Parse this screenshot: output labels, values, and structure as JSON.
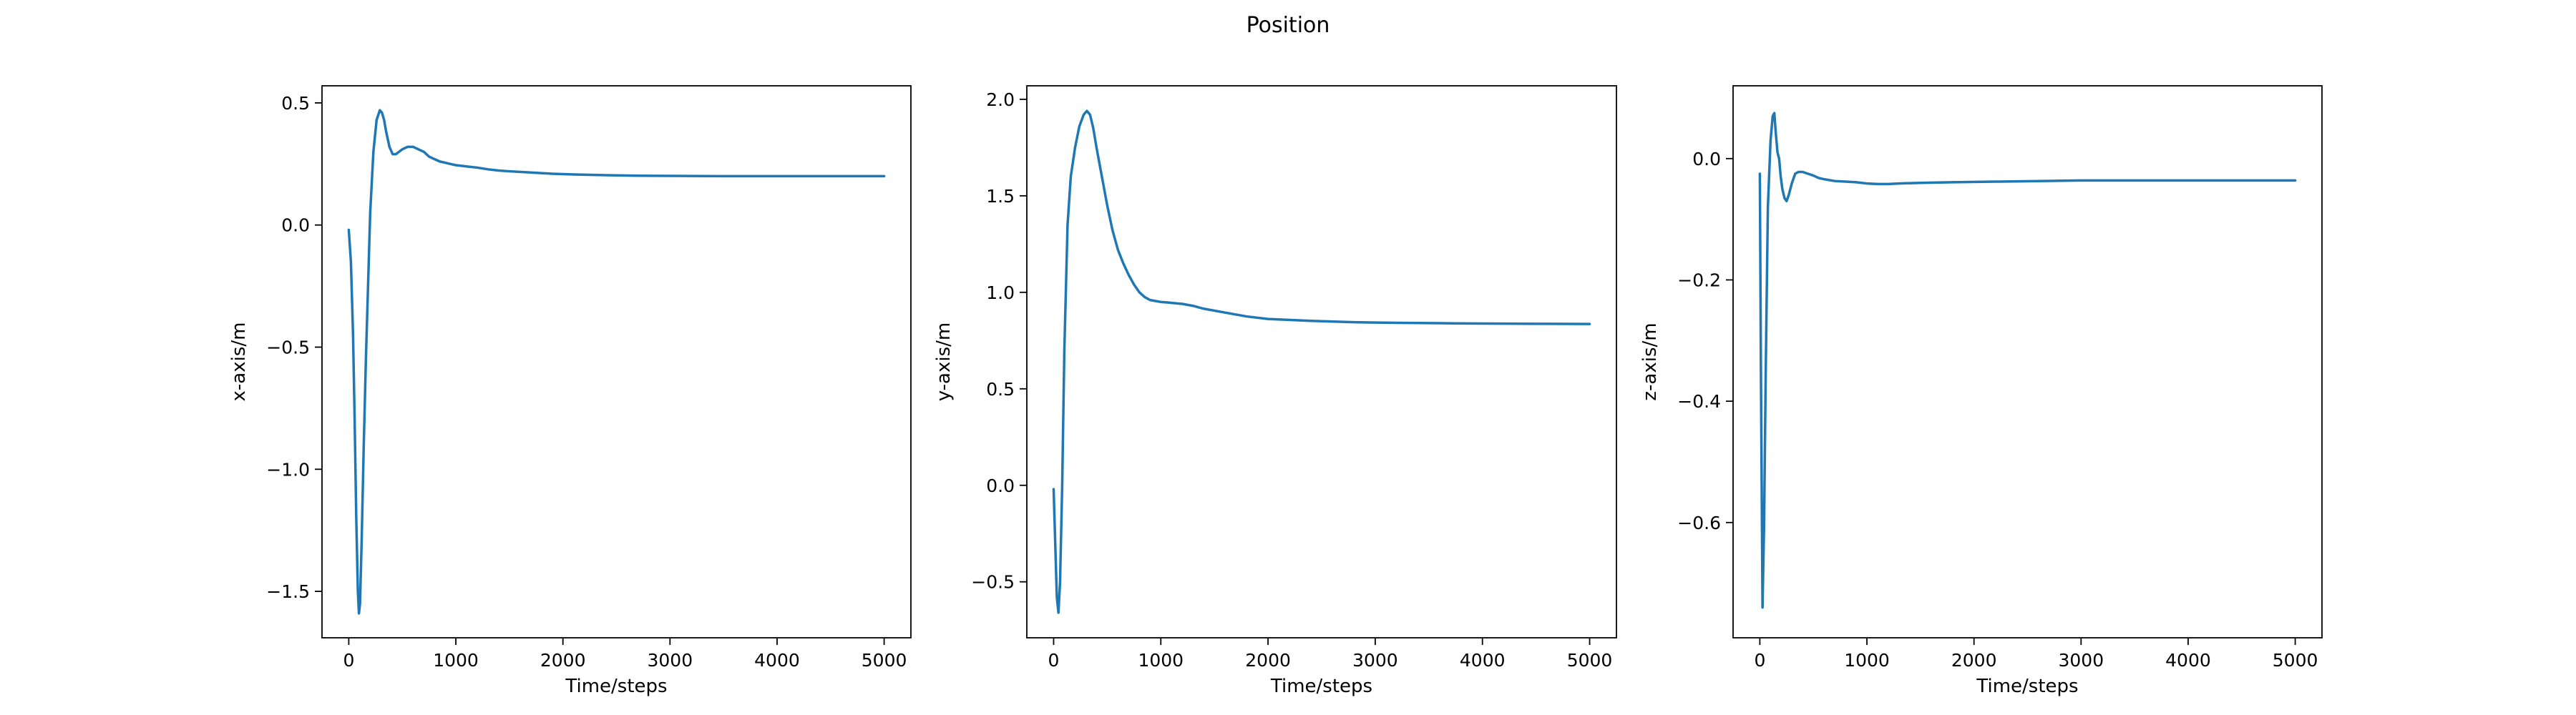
{
  "figure": {
    "title": "Position"
  },
  "chart_data": [
    {
      "type": "line",
      "xlabel": "Time/steps",
      "ylabel": "x-axis/m",
      "xlim": [
        -250,
        5250
      ],
      "ylim": [
        -1.69,
        0.57
      ],
      "xticks": [
        0,
        1000,
        2000,
        3000,
        4000,
        5000
      ],
      "yticks": [
        -1.5,
        -1.0,
        -0.5,
        0.0,
        0.5
      ],
      "ytick_labels": [
        "−1.5",
        "−1.0",
        "−0.5",
        "0.0",
        "0.5"
      ],
      "series": [
        {
          "color": "#1f77b4",
          "x": [
            0,
            20,
            40,
            55,
            70,
            85,
            95,
            105,
            120,
            140,
            160,
            180,
            200,
            230,
            260,
            290,
            310,
            330,
            350,
            380,
            410,
            440,
            470,
            500,
            550,
            600,
            650,
            700,
            750,
            800,
            850,
            900,
            950,
            1000,
            1100,
            1200,
            1300,
            1400,
            1500,
            1700,
            1900,
            2100,
            2400,
            2700,
            3000,
            3500,
            4000,
            4500,
            5000
          ],
          "y": [
            -0.02,
            -0.15,
            -0.45,
            -0.8,
            -1.2,
            -1.5,
            -1.59,
            -1.55,
            -1.3,
            -0.9,
            -0.55,
            -0.25,
            0.05,
            0.3,
            0.43,
            0.47,
            0.46,
            0.43,
            0.38,
            0.32,
            0.29,
            0.29,
            0.3,
            0.31,
            0.32,
            0.32,
            0.31,
            0.3,
            0.28,
            0.27,
            0.26,
            0.255,
            0.25,
            0.245,
            0.24,
            0.235,
            0.228,
            0.223,
            0.22,
            0.215,
            0.21,
            0.207,
            0.204,
            0.202,
            0.201,
            0.2,
            0.2,
            0.2,
            0.2
          ]
        }
      ]
    },
    {
      "type": "line",
      "xlabel": "Time/steps",
      "ylabel": "y-axis/m",
      "xlim": [
        -250,
        5250
      ],
      "ylim": [
        -0.79,
        2.07
      ],
      "xticks": [
        0,
        1000,
        2000,
        3000,
        4000,
        5000
      ],
      "yticks": [
        -0.5,
        0.0,
        0.5,
        1.0,
        1.5,
        2.0
      ],
      "ytick_labels": [
        "−0.5",
        "0.0",
        "0.5",
        "1.0",
        "1.5",
        "2.0"
      ],
      "series": [
        {
          "color": "#1f77b4",
          "x": [
            0,
            15,
            30,
            45,
            60,
            80,
            100,
            130,
            160,
            200,
            240,
            280,
            310,
            340,
            370,
            400,
            450,
            500,
            550,
            600,
            650,
            700,
            750,
            800,
            850,
            900,
            950,
            1000,
            1050,
            1100,
            1200,
            1300,
            1400,
            1600,
            1800,
            2000,
            2400,
            2800,
            3200,
            3600,
            4000,
            4500,
            5000
          ],
          "y": [
            -0.02,
            -0.3,
            -0.58,
            -0.66,
            -0.5,
            0.0,
            0.7,
            1.35,
            1.6,
            1.75,
            1.86,
            1.92,
            1.94,
            1.92,
            1.85,
            1.75,
            1.6,
            1.45,
            1.32,
            1.22,
            1.15,
            1.09,
            1.04,
            1.0,
            0.975,
            0.96,
            0.955,
            0.95,
            0.948,
            0.945,
            0.94,
            0.93,
            0.915,
            0.895,
            0.875,
            0.862,
            0.852,
            0.845,
            0.842,
            0.84,
            0.838,
            0.837,
            0.836
          ]
        }
      ]
    },
    {
      "type": "line",
      "xlabel": "Time/steps",
      "ylabel": "z-axis/m",
      "xlim": [
        -250,
        5250
      ],
      "ylim": [
        -0.79,
        0.12
      ],
      "xticks": [
        0,
        1000,
        2000,
        3000,
        4000,
        5000
      ],
      "yticks": [
        -0.6,
        -0.4,
        -0.2,
        0.0
      ],
      "ytick_labels": [
        "−0.6",
        "−0.4",
        "−0.2",
        "0.0"
      ],
      "series": [
        {
          "color": "#1f77b4",
          "x": [
            0,
            10,
            25,
            40,
            55,
            75,
            100,
            120,
            135,
            150,
            165,
            180,
            195,
            210,
            230,
            250,
            270,
            300,
            330,
            360,
            400,
            450,
            500,
            550,
            600,
            700,
            800,
            900,
            1000,
            1100,
            1200,
            1300,
            1500,
            1800,
            2200,
            2600,
            3000,
            3500,
            4000,
            4500,
            5000
          ],
          "y": [
            -0.025,
            -0.35,
            -0.74,
            -0.6,
            -0.35,
            -0.08,
            0.03,
            0.07,
            0.075,
            0.04,
            0.01,
            0.0,
            -0.03,
            -0.05,
            -0.065,
            -0.07,
            -0.06,
            -0.04,
            -0.025,
            -0.022,
            -0.022,
            -0.025,
            -0.028,
            -0.032,
            -0.034,
            -0.037,
            -0.038,
            -0.039,
            -0.041,
            -0.042,
            -0.042,
            -0.041,
            -0.04,
            -0.039,
            -0.038,
            -0.037,
            -0.036,
            -0.036,
            -0.036,
            -0.036,
            -0.036
          ]
        }
      ]
    }
  ]
}
